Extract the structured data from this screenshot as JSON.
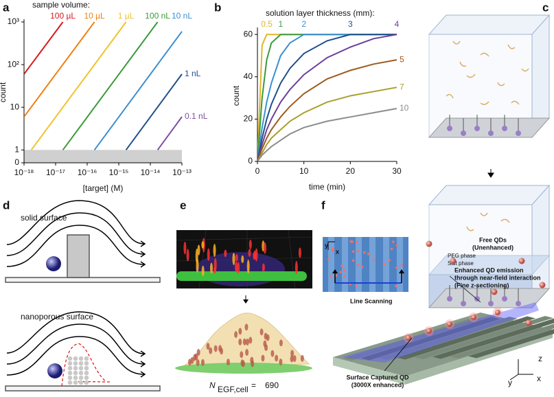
{
  "panel_labels": [
    "a",
    "b",
    "c",
    "d",
    "e",
    "f"
  ],
  "chart_data": [
    {
      "type": "line",
      "legend_title": "sample volume:",
      "xlabel": "[target] (M)",
      "ylabel": "count",
      "xscale": "log",
      "yscale": "log",
      "xlim": [
        1e-18,
        1e-13
      ],
      "ylim": [
        0.5,
        1000
      ],
      "xticks": [
        {
          "value": 1e-18,
          "label": "10⁻¹⁸"
        },
        {
          "value": 1e-17,
          "label": "10⁻¹⁷"
        },
        {
          "value": 1e-16,
          "label": "10⁻¹⁶"
        },
        {
          "value": 1e-15,
          "label": "10⁻¹⁵"
        },
        {
          "value": 1e-14,
          "label": "10⁻¹⁴"
        },
        {
          "value": 1e-13,
          "label": "10⁻¹³"
        }
      ],
      "yticks": [
        {
          "value": 0,
          "label": "0"
        },
        1,
        10,
        {
          "value": 100,
          "label": "10²"
        },
        {
          "value": 1000,
          "label": "10³"
        }
      ],
      "series": [
        {
          "name": "100 µL",
          "color": "#d7191c",
          "x": [
            1e-18,
            1.7e-17
          ],
          "values": [
            60,
            1000
          ]
        },
        {
          "name": "10 µL",
          "color": "#f07f12",
          "x": [
            1e-18,
            1.7e-16
          ],
          "values": [
            6,
            1000
          ]
        },
        {
          "name": "1 µL",
          "color": "#f2c12e",
          "x": [
            1.7e-18,
            1.7e-15
          ],
          "values": [
            1,
            1000
          ]
        },
        {
          "name": "100 nL",
          "color": "#3a9a3a",
          "x": [
            1.7e-17,
            1.7e-14
          ],
          "values": [
            1,
            1000
          ]
        },
        {
          "name": "10 nL",
          "color": "#3a8fd1",
          "x": [
            1.7e-16,
            1e-13
          ],
          "values": [
            1,
            600
          ]
        },
        {
          "name": "1 nL",
          "color": "#1f4e8c",
          "x": [
            1.7e-15,
            1e-13
          ],
          "values": [
            1,
            60
          ]
        },
        {
          "name": "0.1 nL",
          "color": "#7d4fa0",
          "x": [
            1.7e-14,
            1e-13
          ],
          "values": [
            1,
            6
          ]
        }
      ]
    },
    {
      "type": "line",
      "legend_title": "solution layer thickness (mm):",
      "xlabel": "time (min)",
      "ylabel": "count",
      "xlim": [
        0,
        30
      ],
      "ylim": [
        0,
        62
      ],
      "xticks": [
        0,
        10,
        20,
        30
      ],
      "yticks": [
        0,
        20,
        40,
        60
      ],
      "x": [
        0,
        1,
        2,
        3,
        5,
        7,
        10,
        15,
        20,
        25,
        30
      ],
      "series": [
        {
          "name": "0.5",
          "color": "#e0b52a",
          "values": [
            0,
            55,
            60,
            60,
            60,
            60,
            60,
            60,
            60,
            60,
            60
          ]
        },
        {
          "name": "1",
          "color": "#3a9a3a",
          "values": [
            0,
            30,
            48,
            56,
            60,
            60,
            60,
            60,
            60,
            60,
            60
          ]
        },
        {
          "name": "2",
          "color": "#3a8fd1",
          "values": [
            0,
            16,
            28,
            37,
            50,
            56,
            60,
            60,
            60,
            60,
            60
          ]
        },
        {
          "name": "3",
          "color": "#1f4e8c",
          "values": [
            0,
            11,
            20,
            27,
            37,
            44,
            51,
            57,
            60,
            60,
            60
          ]
        },
        {
          "name": "4",
          "color": "#6a3d9a",
          "values": [
            0,
            8,
            15,
            20,
            28,
            34,
            41,
            49,
            54,
            58,
            60
          ]
        },
        {
          "name": "5",
          "color": "#9c5a1e",
          "values": [
            0,
            6,
            11,
            15,
            21,
            26,
            32,
            39,
            43,
            46,
            48
          ]
        },
        {
          "name": "7",
          "color": "#a8a028",
          "values": [
            0,
            4,
            8,
            11,
            15,
            19,
            23,
            28,
            31,
            33,
            35
          ]
        },
        {
          "name": "10",
          "color": "#8c8c8c",
          "values": [
            0,
            3,
            5,
            7,
            10,
            13,
            16,
            19,
            21,
            23,
            25
          ]
        }
      ]
    }
  ],
  "panel_c": {
    "phase_labels": [
      "PEG phase",
      "Salt phase"
    ]
  },
  "panel_d": {
    "labels": [
      "solid surface",
      "nanoporous surface"
    ]
  },
  "panel_e": {
    "symbol": "N",
    "subscript": "EGF,cell",
    "relation": "=",
    "value": 690
  },
  "panel_f": {
    "inset_axes": [
      "y",
      "x"
    ],
    "inset_caption": "Line Scanning",
    "free_qds": [
      "Free QDs",
      "(Unenhanced)"
    ],
    "enhanced": [
      "Enhanced QD emission",
      "through near-field interaction",
      "(Fine z-sectioning)"
    ],
    "captured": [
      "Surface Captured QD",
      "(3000X enhanced)"
    ],
    "axes": [
      "z",
      "y",
      "x"
    ]
  }
}
